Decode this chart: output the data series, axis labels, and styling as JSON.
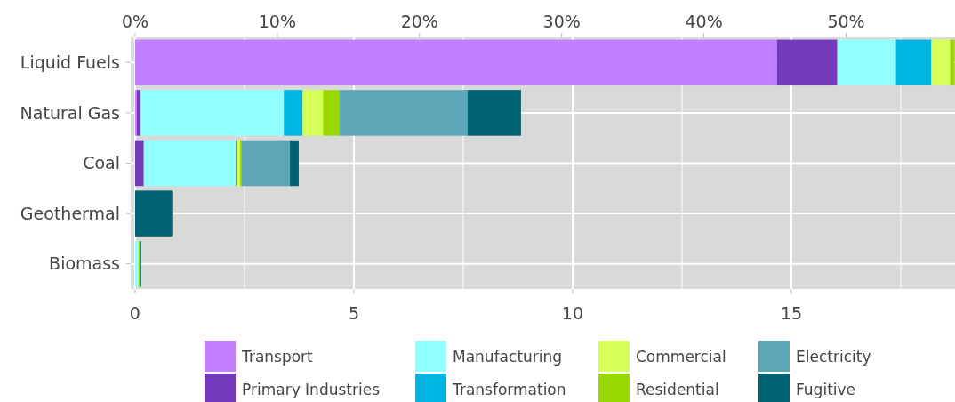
{
  "chart_data": {
    "type": "bar",
    "orientation": "horizontal",
    "stacked": true,
    "categories": [
      "Liquid Fuels",
      "Natural Gas",
      "Coal",
      "Geothermal",
      "Biomass"
    ],
    "series": [
      {
        "name": "Transport",
        "color": "#c080ff",
        "values": [
          14.67,
          0.04,
          0,
          0,
          0
        ]
      },
      {
        "name": "Primary Industries",
        "color": "#733bbb",
        "values": [
          1.38,
          0.09,
          0.2,
          0,
          0
        ]
      },
      {
        "name": "Manufacturing",
        "color": "#91ffff",
        "values": [
          1.34,
          3.27,
          2.1,
          0,
          0.08
        ]
      },
      {
        "name": "Transformation",
        "color": "#00b5e2",
        "values": [
          0.81,
          0.43,
          0.02,
          0,
          0
        ]
      },
      {
        "name": "Commercial",
        "color": "#d6ff57",
        "values": [
          0.43,
          0.47,
          0.08,
          0,
          0
        ]
      },
      {
        "name": "Residential",
        "color": "#99d900",
        "values": [
          0.1,
          0.37,
          0.04,
          0,
          0.04
        ]
      },
      {
        "name": "Electricity",
        "color": "#5ca6b8",
        "values": [
          0,
          2.93,
          1.1,
          0,
          0
        ]
      },
      {
        "name": "Fugitive",
        "color": "#006272",
        "values": [
          0,
          1.22,
          0.2,
          0.85,
          0.02
        ]
      }
    ],
    "xlim": [
      -0.1,
      18.74
    ],
    "xticks": [
      0,
      {
        "value": 2.5,
        "label": null
      },
      5,
      {
        "value": 7.5,
        "label": null
      },
      10,
      {
        "value": 12.5,
        "label": null
      },
      15,
      {
        "value": 17.5,
        "label": null
      }
    ],
    "x2lim": [
      -0.31,
      57.66
    ],
    "x2ticks": [
      {
        "value": 0,
        "label": "0%"
      },
      {
        "value": 10,
        "label": "10%"
      },
      {
        "value": 20,
        "label": "20%"
      },
      {
        "value": 30,
        "label": "30%"
      },
      {
        "value": 40,
        "label": "40%"
      },
      {
        "value": 50,
        "label": "50%"
      }
    ],
    "grid": true,
    "legend": "bottom"
  }
}
